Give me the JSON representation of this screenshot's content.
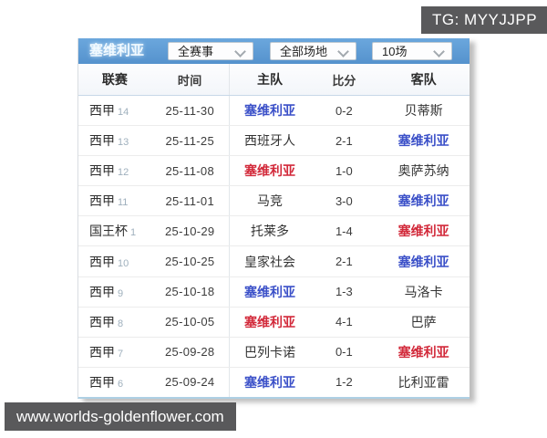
{
  "overlays": {
    "tg_badge": "TG: MYYJJPP",
    "watermark": "www.worlds-goldenflower.com"
  },
  "toolbar": {
    "team_label": "塞维利亚",
    "dropdowns": [
      {
        "id": "competition",
        "value": "全赛事"
      },
      {
        "id": "venue",
        "value": "全部场地"
      },
      {
        "id": "match-count",
        "value": "10场"
      }
    ]
  },
  "table": {
    "columns": [
      "联赛",
      "时间",
      "主队",
      "比分",
      "客队"
    ],
    "rows": [
      {
        "league": "西甲",
        "round": "14",
        "date": "25-11-30",
        "home": "塞维利亚",
        "home_style": "loss",
        "score": "0-2",
        "away": "贝蒂斯",
        "away_style": "none"
      },
      {
        "league": "西甲",
        "round": "13",
        "date": "25-11-25",
        "home": "西班牙人",
        "home_style": "none",
        "score": "2-1",
        "away": "塞维利亚",
        "away_style": "loss"
      },
      {
        "league": "西甲",
        "round": "12",
        "date": "25-11-08",
        "home": "塞维利亚",
        "home_style": "win",
        "score": "1-0",
        "away": "奥萨苏纳",
        "away_style": "none"
      },
      {
        "league": "西甲",
        "round": "11",
        "date": "25-11-01",
        "home": "马竞",
        "home_style": "none",
        "score": "3-0",
        "away": "塞维利亚",
        "away_style": "loss"
      },
      {
        "league": "国王杯",
        "round": "1",
        "date": "25-10-29",
        "home": "托莱多",
        "home_style": "none",
        "score": "1-4",
        "away": "塞维利亚",
        "away_style": "win"
      },
      {
        "league": "西甲",
        "round": "10",
        "date": "25-10-25",
        "home": "皇家社会",
        "home_style": "none",
        "score": "2-1",
        "away": "塞维利亚",
        "away_style": "loss"
      },
      {
        "league": "西甲",
        "round": "9",
        "date": "25-10-18",
        "home": "塞维利亚",
        "home_style": "loss",
        "score": "1-3",
        "away": "马洛卡",
        "away_style": "none"
      },
      {
        "league": "西甲",
        "round": "8",
        "date": "25-10-05",
        "home": "塞维利亚",
        "home_style": "win",
        "score": "4-1",
        "away": "巴萨",
        "away_style": "none"
      },
      {
        "league": "西甲",
        "round": "7",
        "date": "25-09-28",
        "home": "巴列卡诺",
        "home_style": "none",
        "score": "0-1",
        "away": "塞维利亚",
        "away_style": "win"
      },
      {
        "league": "西甲",
        "round": "6",
        "date": "25-09-24",
        "home": "塞维利亚",
        "home_style": "loss",
        "score": "1-2",
        "away": "比利亚雷",
        "away_style": "none"
      }
    ]
  },
  "colors": {
    "header_blue": "#5b9ad2",
    "win_red": "#d2293a",
    "loss_blue": "#3b50c8",
    "badge_gray": "#59595b"
  }
}
